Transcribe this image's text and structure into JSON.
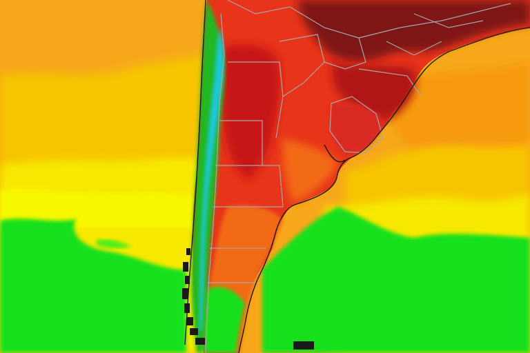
{
  "map": {
    "type": "surface-temperature-heatmap",
    "region": "southern-south-america",
    "colors": {
      "ocean_green": "#16e01e",
      "green_light": "#52f01a",
      "yellow": "#f7f700",
      "yellow_orange": "#f7c400",
      "orange": "#f79a10",
      "orange_red": "#f26a18",
      "red": "#e8341a",
      "red_dark": "#c61212",
      "maroon": "#7e1616",
      "mountain_green": "#22b822",
      "mountain_cyan": "#1ac8e0",
      "coast_line": "#1a1a1a",
      "border_line": "#a8a8a8"
    }
  }
}
